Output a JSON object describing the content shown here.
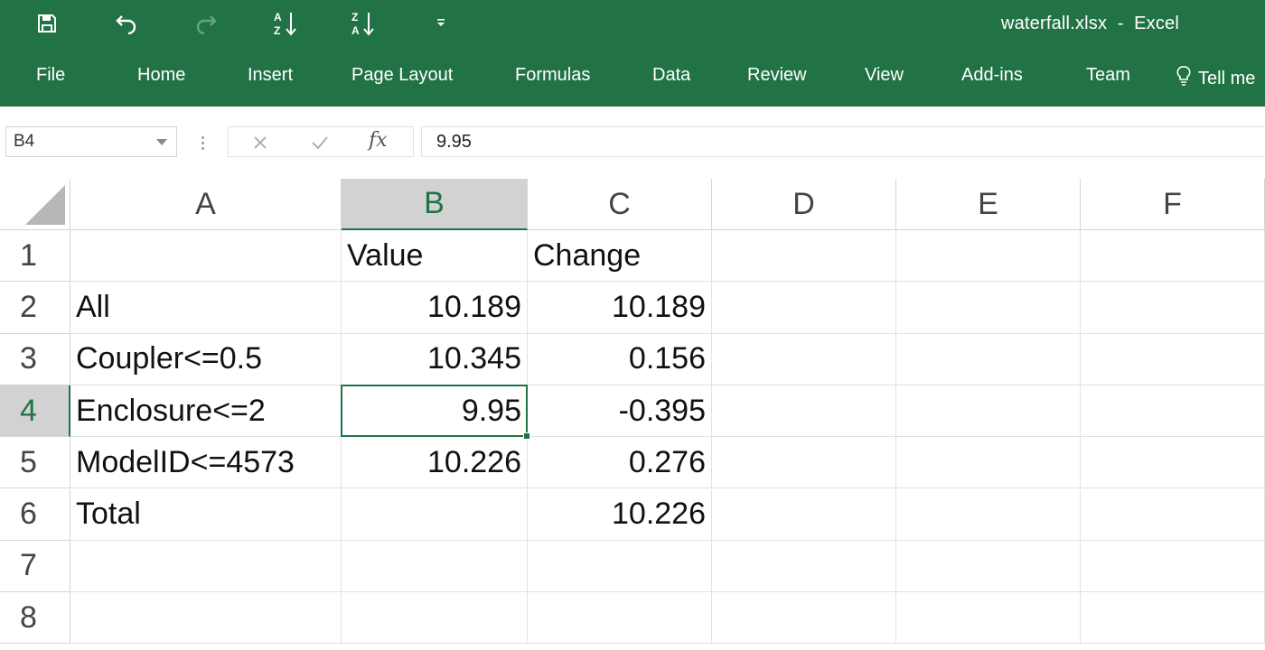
{
  "app": {
    "window_title": "waterfall.xlsx  -  Excel",
    "accent_color": "#217346"
  },
  "qat": [
    {
      "icon": "save-icon"
    },
    {
      "icon": "undo-icon"
    },
    {
      "icon": "redo-icon"
    },
    {
      "icon": "sort-ascending-icon"
    },
    {
      "icon": "sort-descending-icon"
    },
    {
      "icon": "customize-qat-icon"
    }
  ],
  "ribbon_tabs": [
    "File",
    "Home",
    "Insert",
    "Page Layout",
    "Formulas",
    "Data",
    "Review",
    "View",
    "Add-ins",
    "Team"
  ],
  "tell_me": "Tell me",
  "formula_bar": {
    "name_box": "B4",
    "formula": "9.95"
  },
  "columns": [
    "A",
    "B",
    "C",
    "D",
    "E",
    "F"
  ],
  "rows": [
    "1",
    "2",
    "3",
    "4",
    "5",
    "6",
    "7",
    "8"
  ],
  "selected": {
    "column": "B",
    "row": "4"
  },
  "cells": {
    "A2": "All",
    "A3": "Coupler<=0.5",
    "A4": "Enclosure<=2",
    "A5": "ModelID<=4573",
    "A6": "Total",
    "B1": "Value",
    "B2": "10.189",
    "B3": "10.345",
    "B4": "9.95",
    "B5": "10.226",
    "C1": "Change",
    "C2": "10.189",
    "C3": "0.156",
    "C4": "-0.395",
    "C5": "0.276",
    "C6": "10.226"
  },
  "cell_align": {
    "A2": "txt",
    "A3": "txt",
    "A4": "txt",
    "A5": "txt",
    "A6": "txt",
    "B1": "txt",
    "C1": "txt",
    "B2": "num",
    "B3": "num",
    "B4": "num",
    "B5": "num",
    "C2": "num",
    "C3": "num",
    "C4": "num",
    "C5": "num",
    "C6": "num"
  }
}
